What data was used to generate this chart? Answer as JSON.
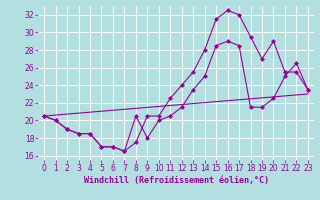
{
  "xlabel": "Windchill (Refroidissement éolien,°C)",
  "background_color": "#b2e0e0",
  "grid_color": "#ffffff",
  "line_color": "#990099",
  "ylim": [
    15.5,
    33.0
  ],
  "xlim": [
    -0.5,
    23.5
  ],
  "yticks": [
    16,
    18,
    20,
    22,
    24,
    26,
    28,
    30,
    32
  ],
  "xticks": [
    0,
    1,
    2,
    3,
    4,
    5,
    6,
    7,
    8,
    9,
    10,
    11,
    12,
    13,
    14,
    15,
    16,
    17,
    18,
    19,
    20,
    21,
    22,
    23
  ],
  "line1_x": [
    0,
    1,
    2,
    3,
    4,
    5,
    6,
    7,
    8,
    9,
    10,
    11,
    12,
    13,
    14,
    15,
    16,
    17,
    18,
    19,
    20,
    21,
    22,
    23
  ],
  "line1_y": [
    20.5,
    20.0,
    19.0,
    18.5,
    18.5,
    17.0,
    17.0,
    16.5,
    20.5,
    18.0,
    20.0,
    20.5,
    21.5,
    23.5,
    25.0,
    28.5,
    29.0,
    28.5,
    21.5,
    21.5,
    22.5,
    25.0,
    26.5,
    23.5
  ],
  "line2_x": [
    0,
    1,
    2,
    3,
    4,
    5,
    6,
    7,
    8,
    9,
    10,
    11,
    12,
    13,
    14,
    15,
    16,
    17,
    18,
    19,
    20,
    21,
    22,
    23
  ],
  "line2_y": [
    20.5,
    20.0,
    19.0,
    18.5,
    18.5,
    17.0,
    17.0,
    16.5,
    17.5,
    20.5,
    20.5,
    22.5,
    24.0,
    25.5,
    28.0,
    31.5,
    32.5,
    32.0,
    29.5,
    27.0,
    29.0,
    25.5,
    25.5,
    23.5
  ],
  "line3_x": [
    0,
    23
  ],
  "line3_y": [
    20.5,
    23.0
  ],
  "xlabel_fontsize": 6.0,
  "tick_fontsize": 5.5
}
